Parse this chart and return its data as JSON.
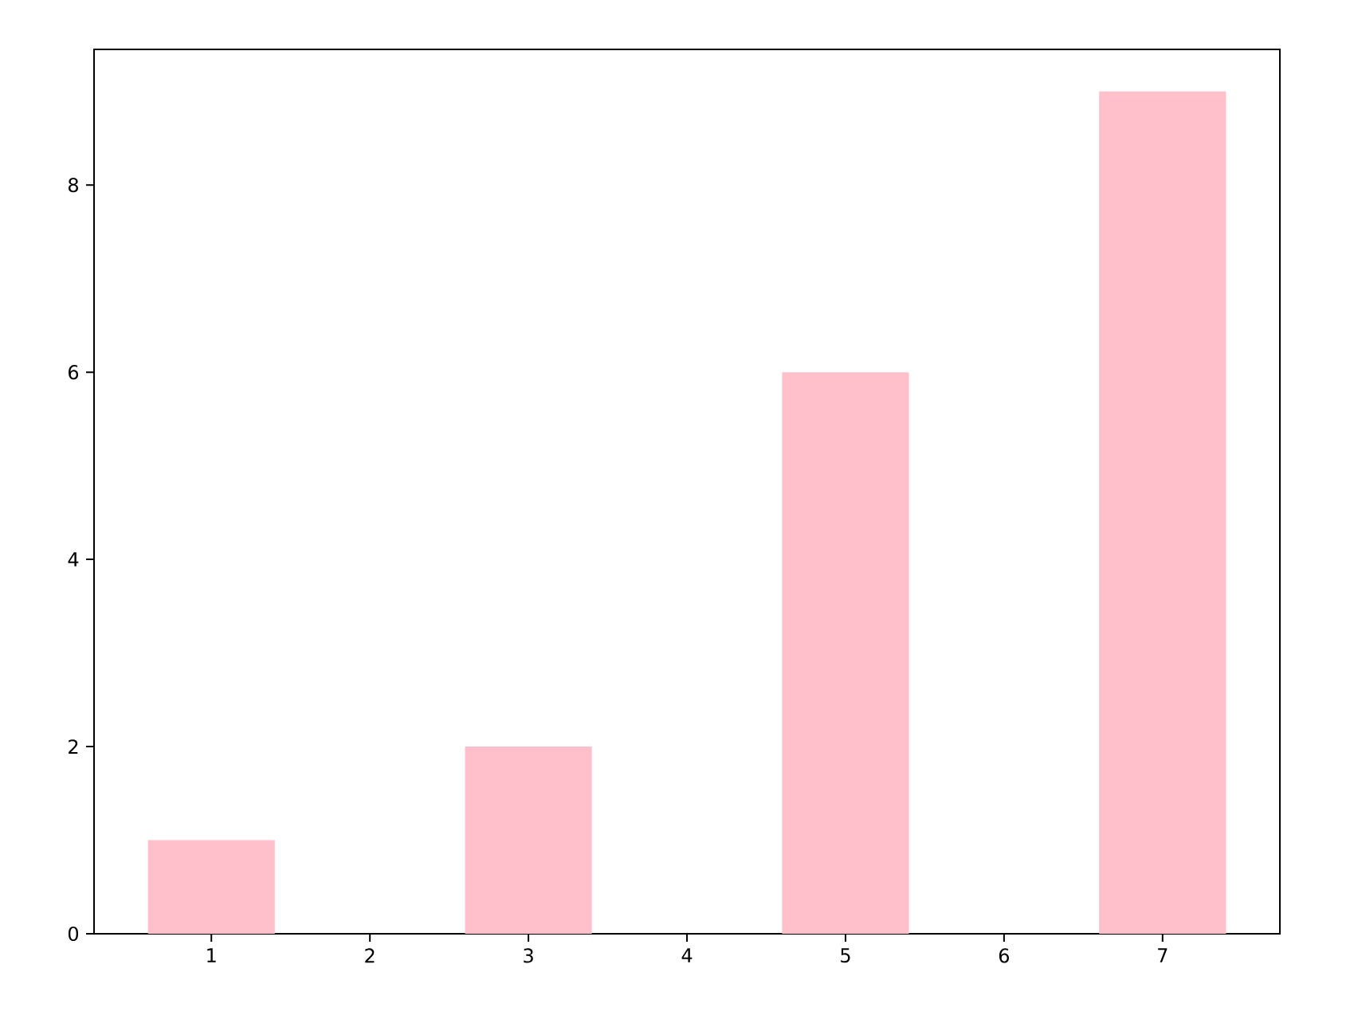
{
  "chart_data": {
    "type": "bar",
    "x": [
      1,
      3,
      5,
      7
    ],
    "values": [
      1,
      2,
      6,
      9
    ],
    "color": "#ffc0cb",
    "xlim": [
      0.26,
      7.74
    ],
    "ylim": [
      0,
      9.45
    ],
    "xticks": [
      1,
      2,
      3,
      4,
      5,
      6,
      7
    ],
    "yticks": [
      0,
      2,
      4,
      6,
      8
    ]
  }
}
